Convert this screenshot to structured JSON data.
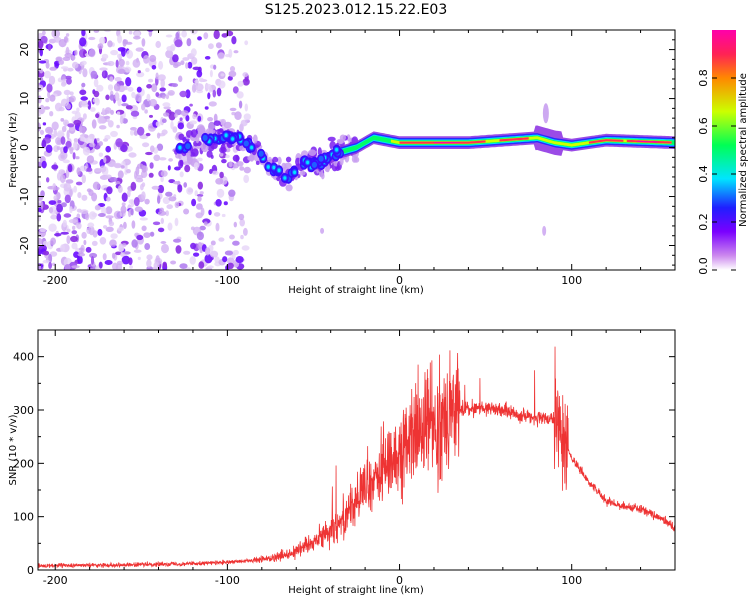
{
  "title": "S125.2023.012.15.22.E03",
  "chart_data": [
    {
      "type": "heatmap",
      "xlabel": "Height of straight line (km)",
      "ylabel": "Frequency (Hz)",
      "xlim": [
        -210,
        160
      ],
      "ylim": [
        -25,
        24
      ],
      "xticks": [
        -200,
        -100,
        0,
        100
      ],
      "yticks": [
        -20,
        -10,
        0,
        10,
        20
      ],
      "colorbar": {
        "label": "Normalized spectral amplitude",
        "range": [
          0,
          1
        ],
        "ticks": [
          0.0,
          0.2,
          0.4,
          0.6,
          0.8
        ],
        "tick_labels": [
          "0.0",
          "0.2",
          "0.4",
          "0.6",
          "0.8"
        ],
        "colors": [
          "#ffffff",
          "#cc88ee",
          "#7a00ff",
          "#1f1fff",
          "#00e5ff",
          "#00ff55",
          "#ccff00",
          "#ff8800",
          "#ff2255",
          "#ff00aa"
        ]
      },
      "ridge": {
        "description_points_x": [
          -125,
          -110,
          -95,
          -85,
          -75,
          -65,
          -55,
          -45,
          -35,
          -25,
          -15,
          0,
          20,
          40,
          60,
          80,
          90,
          100,
          120,
          160
        ],
        "description_points_y": [
          0,
          2,
          2,
          0,
          -4,
          -6,
          -3,
          -3,
          -1,
          0,
          2,
          1,
          1,
          1,
          1.5,
          2,
          1,
          0.5,
          1.5,
          1
        ]
      }
    },
    {
      "type": "line",
      "xlabel": "Height of straight line (km)",
      "ylabel": "SNR (10 * v/v)",
      "xlim": [
        -210,
        160
      ],
      "ylim": [
        0,
        450
      ],
      "xticks": [
        -200,
        -100,
        0,
        100
      ],
      "yticks": [
        0,
        100,
        200,
        300,
        400
      ],
      "color": "#ee3333",
      "envelope_x": [
        -210,
        -150,
        -100,
        -85,
        -75,
        -65,
        -55,
        -45,
        -35,
        -28,
        -20,
        -10,
        0,
        10,
        20,
        30,
        40,
        50,
        60,
        70,
        80,
        90,
        95,
        100,
        110,
        120,
        130,
        140,
        150,
        160
      ],
      "envelope_y": [
        8,
        10,
        14,
        18,
        22,
        30,
        45,
        65,
        90,
        120,
        150,
        185,
        225,
        255,
        280,
        295,
        302,
        305,
        300,
        290,
        285,
        280,
        250,
        210,
        165,
        130,
        120,
        115,
        100,
        80
      ]
    }
  ]
}
